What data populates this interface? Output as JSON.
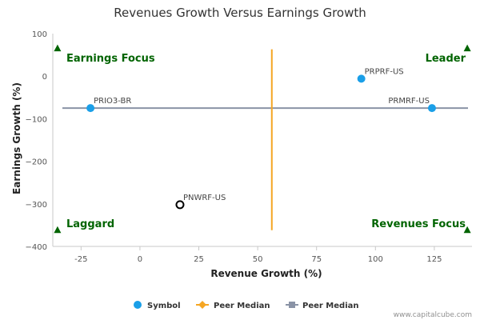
{
  "chart_data": {
    "type": "scatter",
    "title": "Revenues Growth Versus Earnings Growth",
    "xlabel": "Revenue Growth (%)",
    "ylabel": "Earnings Growth (%)",
    "xlim": [
      -37,
      141
    ],
    "ylim": [
      -400,
      100
    ],
    "xticks": [
      -25,
      0,
      25,
      50,
      75,
      100,
      125
    ],
    "xtick_labels": [
      "-25",
      "0",
      "25",
      "50",
      "75",
      "100",
      "125"
    ],
    "yticks": [
      100,
      0,
      -100,
      -200,
      -300,
      -400
    ],
    "ytick_labels": [
      "100",
      "0",
      "−100",
      "−200",
      "−300",
      "−400"
    ],
    "points": [
      {
        "label": "PRIO3-BR",
        "x": -21,
        "y": -75,
        "style": "filled"
      },
      {
        "label": "PRPRF-US",
        "x": 94,
        "y": -6,
        "style": "filled"
      },
      {
        "label": "PRMRF-US",
        "x": 124,
        "y": -75,
        "style": "filled"
      },
      {
        "label": "PNWRF-US",
        "x": 17,
        "y": -302,
        "style": "hollow"
      }
    ],
    "peer_median_x": 56,
    "peer_median_y": -75,
    "vline_y_range": [
      63,
      -362
    ],
    "quadrants": {
      "top_left": "Earnings Focus",
      "top_right": "Leader",
      "bottom_left": "Laggard",
      "bottom_right": "Revenues Focus"
    },
    "quadrant_markers": [
      {
        "x": -35,
        "y": 65
      },
      {
        "x": 139,
        "y": 65
      },
      {
        "x": -35,
        "y": -362
      },
      {
        "x": 139,
        "y": -362
      }
    ],
    "legend": [
      "Symbol",
      "Peer Median",
      "Peer Median"
    ],
    "legend_position": "bottom-center",
    "credit": "www.capitalcube.com"
  },
  "colors": {
    "point": "#1a9fe8",
    "hollow_stroke": "#000000",
    "vline": "#f5a623",
    "hline": "#8a93a6",
    "quadrant": "#006400",
    "axis": "#c8c8c8"
  }
}
